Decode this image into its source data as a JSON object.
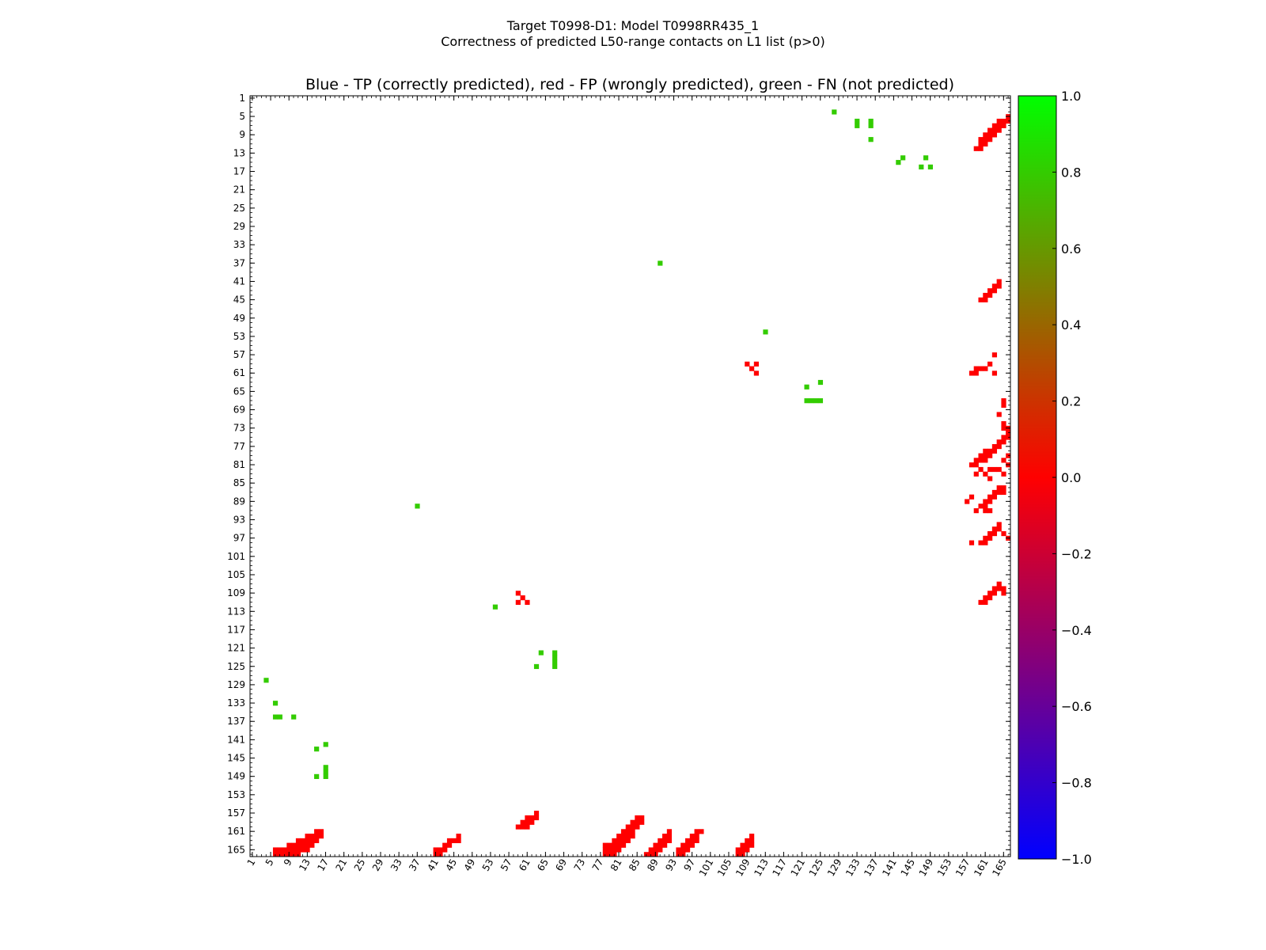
{
  "chart_data": {
    "type": "heatmap",
    "suptitle_lines": [
      "Target T0998-D1: Model T0998RR435_1",
      "Correctness of predicted L50-range contacts on L1 list (p>0)"
    ],
    "title": "Blue - TP (correctly predicted), red - FP (wrongly predicted), green - FN (not predicted)",
    "xlabel": "",
    "ylabel": "",
    "x_range": [
      1,
      166
    ],
    "y_range": [
      1,
      166
    ],
    "y_inverted": true,
    "tick_labels": [
      "1",
      "5",
      "9",
      "13",
      "17",
      "21",
      "25",
      "29",
      "33",
      "37",
      "41",
      "45",
      "49",
      "53",
      "57",
      "61",
      "65",
      "69",
      "73",
      "77",
      "81",
      "85",
      "89",
      "93",
      "97",
      "101",
      "105",
      "109",
      "113",
      "117",
      "121",
      "125",
      "129",
      "133",
      "137",
      "141",
      "145",
      "149",
      "153",
      "157",
      "161",
      "165"
    ],
    "colorbar": {
      "range": [
        -1.0,
        1.0
      ],
      "tick_labels": [
        "1.0",
        "0.8",
        "0.6",
        "0.4",
        "0.2",
        "0.0",
        "−0.2",
        "−0.4",
        "−0.6",
        "−0.8",
        "−1.0"
      ],
      "colors": {
        "low": "#0000ff",
        "mid": "#ff0000",
        "high": "#00ff00"
      }
    },
    "category_colors": {
      "FP": "#ff0000",
      "FN": "#33cc00"
    },
    "fn_cells": [
      [
        128,
        4
      ],
      [
        133,
        6
      ],
      [
        133,
        7
      ],
      [
        136,
        7
      ],
      [
        136,
        6
      ],
      [
        136,
        10
      ],
      [
        142,
        15
      ],
      [
        143,
        14
      ],
      [
        148,
        14
      ],
      [
        147,
        16
      ],
      [
        149,
        16
      ],
      [
        17,
        142
      ],
      [
        15,
        143
      ],
      [
        15,
        149
      ],
      [
        17,
        148
      ],
      [
        17,
        147
      ],
      [
        17,
        149
      ],
      [
        4,
        128
      ],
      [
        6,
        133
      ],
      [
        6,
        136
      ],
      [
        7,
        136
      ],
      [
        10,
        136
      ],
      [
        90,
        37
      ],
      [
        37,
        90
      ],
      [
        54,
        112
      ],
      [
        113,
        52
      ],
      [
        64,
        122
      ],
      [
        63,
        125
      ],
      [
        67,
        122
      ],
      [
        67,
        123
      ],
      [
        67,
        124
      ],
      [
        67,
        125
      ],
      [
        122,
        64
      ],
      [
        125,
        63
      ],
      [
        122,
        67
      ],
      [
        123,
        67
      ],
      [
        124,
        67
      ],
      [
        125,
        67
      ]
    ],
    "fp_cells": [
      [
        6,
        165
      ],
      [
        6,
        166
      ],
      [
        7,
        165
      ],
      [
        7,
        166
      ],
      [
        8,
        165
      ],
      [
        8,
        166
      ],
      [
        9,
        164
      ],
      [
        9,
        165
      ],
      [
        9,
        166
      ],
      [
        10,
        164
      ],
      [
        10,
        165
      ],
      [
        10,
        166
      ],
      [
        11,
        163
      ],
      [
        11,
        164
      ],
      [
        11,
        165
      ],
      [
        11,
        166
      ],
      [
        12,
        163
      ],
      [
        12,
        164
      ],
      [
        12,
        165
      ],
      [
        13,
        162
      ],
      [
        13,
        163
      ],
      [
        13,
        164
      ],
      [
        13,
        165
      ],
      [
        14,
        162
      ],
      [
        14,
        163
      ],
      [
        14,
        164
      ],
      [
        15,
        161
      ],
      [
        15,
        162
      ],
      [
        15,
        163
      ],
      [
        16,
        161
      ],
      [
        16,
        162
      ],
      [
        41,
        165
      ],
      [
        41,
        166
      ],
      [
        42,
        165
      ],
      [
        42,
        166
      ],
      [
        43,
        164
      ],
      [
        43,
        165
      ],
      [
        44,
        163
      ],
      [
        44,
        164
      ],
      [
        45,
        163
      ],
      [
        46,
        162
      ],
      [
        46,
        163
      ],
      [
        59,
        160
      ],
      [
        60,
        159
      ],
      [
        60,
        160
      ],
      [
        61,
        158
      ],
      [
        61,
        159
      ],
      [
        61,
        160
      ],
      [
        62,
        158
      ],
      [
        62,
        159
      ],
      [
        63,
        157
      ],
      [
        63,
        158
      ],
      [
        78,
        164
      ],
      [
        78,
        165
      ],
      [
        78,
        166
      ],
      [
        79,
        164
      ],
      [
        79,
        165
      ],
      [
        79,
        166
      ],
      [
        80,
        163
      ],
      [
        80,
        164
      ],
      [
        80,
        165
      ],
      [
        80,
        166
      ],
      [
        81,
        162
      ],
      [
        81,
        163
      ],
      [
        81,
        164
      ],
      [
        81,
        165
      ],
      [
        82,
        161
      ],
      [
        82,
        162
      ],
      [
        82,
        163
      ],
      [
        82,
        164
      ],
      [
        83,
        160
      ],
      [
        83,
        161
      ],
      [
        83,
        162
      ],
      [
        83,
        163
      ],
      [
        84,
        159
      ],
      [
        84,
        160
      ],
      [
        84,
        161
      ],
      [
        84,
        162
      ],
      [
        85,
        158
      ],
      [
        85,
        159
      ],
      [
        85,
        160
      ],
      [
        86,
        158
      ],
      [
        86,
        159
      ],
      [
        87,
        166
      ],
      [
        88,
        165
      ],
      [
        88,
        166
      ],
      [
        89,
        164
      ],
      [
        89,
        165
      ],
      [
        89,
        166
      ],
      [
        90,
        163
      ],
      [
        90,
        164
      ],
      [
        90,
        165
      ],
      [
        91,
        162
      ],
      [
        91,
        163
      ],
      [
        91,
        164
      ],
      [
        92,
        161
      ],
      [
        92,
        162
      ],
      [
        92,
        163
      ],
      [
        94,
        165
      ],
      [
        94,
        166
      ],
      [
        95,
        164
      ],
      [
        95,
        165
      ],
      [
        95,
        166
      ],
      [
        96,
        163
      ],
      [
        96,
        164
      ],
      [
        96,
        165
      ],
      [
        97,
        162
      ],
      [
        97,
        163
      ],
      [
        97,
        164
      ],
      [
        98,
        161
      ],
      [
        98,
        162
      ],
      [
        98,
        163
      ],
      [
        99,
        161
      ],
      [
        107,
        165
      ],
      [
        107,
        166
      ],
      [
        108,
        164
      ],
      [
        108,
        165
      ],
      [
        108,
        166
      ],
      [
        109,
        163
      ],
      [
        109,
        164
      ],
      [
        109,
        165
      ],
      [
        110,
        162
      ],
      [
        110,
        163
      ],
      [
        110,
        164
      ],
      [
        159,
        12
      ],
      [
        160,
        10
      ],
      [
        160,
        11
      ],
      [
        160,
        12
      ],
      [
        161,
        9
      ],
      [
        161,
        10
      ],
      [
        161,
        11
      ],
      [
        162,
        8
      ],
      [
        162,
        9
      ],
      [
        162,
        10
      ],
      [
        163,
        7
      ],
      [
        163,
        8
      ],
      [
        163,
        9
      ],
      [
        164,
        6
      ],
      [
        164,
        7
      ],
      [
        164,
        8
      ],
      [
        165,
        6
      ],
      [
        165,
        7
      ],
      [
        166,
        5
      ],
      [
        166,
        6
      ],
      [
        160,
        45
      ],
      [
        161,
        44
      ],
      [
        161,
        45
      ],
      [
        162,
        43
      ],
      [
        162,
        44
      ],
      [
        163,
        42
      ],
      [
        163,
        43
      ],
      [
        164,
        41
      ],
      [
        164,
        42
      ],
      [
        158,
        61
      ],
      [
        159,
        60
      ],
      [
        159,
        61
      ],
      [
        160,
        60
      ],
      [
        161,
        60
      ],
      [
        162,
        59
      ],
      [
        163,
        61
      ],
      [
        163,
        57
      ],
      [
        158,
        81
      ],
      [
        159,
        80
      ],
      [
        159,
        81
      ],
      [
        160,
        79
      ],
      [
        160,
        80
      ],
      [
        161,
        78
      ],
      [
        161,
        79
      ],
      [
        161,
        80
      ],
      [
        162,
        78
      ],
      [
        162,
        79
      ],
      [
        163,
        77
      ],
      [
        163,
        78
      ],
      [
        164,
        76
      ],
      [
        164,
        77
      ],
      [
        165,
        75
      ],
      [
        165,
        76
      ],
      [
        166,
        74
      ],
      [
        166,
        75
      ],
      [
        163,
        82
      ],
      [
        162,
        82
      ],
      [
        165,
        80
      ],
      [
        166,
        79
      ],
      [
        166,
        81
      ],
      [
        164,
        82
      ],
      [
        165,
        83
      ],
      [
        162,
        84
      ],
      [
        161,
        83
      ],
      [
        160,
        82
      ],
      [
        159,
        83
      ],
      [
        160,
        90
      ],
      [
        161,
        89
      ],
      [
        161,
        90
      ],
      [
        162,
        88
      ],
      [
        162,
        89
      ],
      [
        163,
        87
      ],
      [
        163,
        88
      ],
      [
        164,
        87
      ],
      [
        164,
        86
      ],
      [
        165,
        87
      ],
      [
        165,
        86
      ],
      [
        159,
        91
      ],
      [
        158,
        88
      ],
      [
        157,
        89
      ],
      [
        161,
        91
      ],
      [
        162,
        91
      ],
      [
        160,
        98
      ],
      [
        161,
        97
      ],
      [
        161,
        98
      ],
      [
        162,
        96
      ],
      [
        162,
        97
      ],
      [
        163,
        95
      ],
      [
        163,
        96
      ],
      [
        164,
        95
      ],
      [
        164,
        94
      ],
      [
        165,
        96
      ],
      [
        166,
        97
      ],
      [
        158,
        98
      ],
      [
        161,
        110
      ],
      [
        162,
        109
      ],
      [
        162,
        110
      ],
      [
        163,
        108
      ],
      [
        163,
        109
      ],
      [
        164,
        108
      ],
      [
        164,
        107
      ],
      [
        165,
        108
      ],
      [
        165,
        109
      ],
      [
        161,
        111
      ],
      [
        160,
        111
      ],
      [
        165,
        67
      ],
      [
        165,
        68
      ],
      [
        164,
        70
      ],
      [
        165,
        72
      ],
      [
        165,
        73
      ],
      [
        166,
        74
      ],
      [
        166,
        73
      ],
      [
        109,
        59
      ],
      [
        111,
        59
      ],
      [
        111,
        61
      ],
      [
        110,
        60
      ],
      [
        59,
        109
      ],
      [
        61,
        111
      ],
      [
        60,
        110
      ],
      [
        59,
        111
      ]
    ]
  }
}
